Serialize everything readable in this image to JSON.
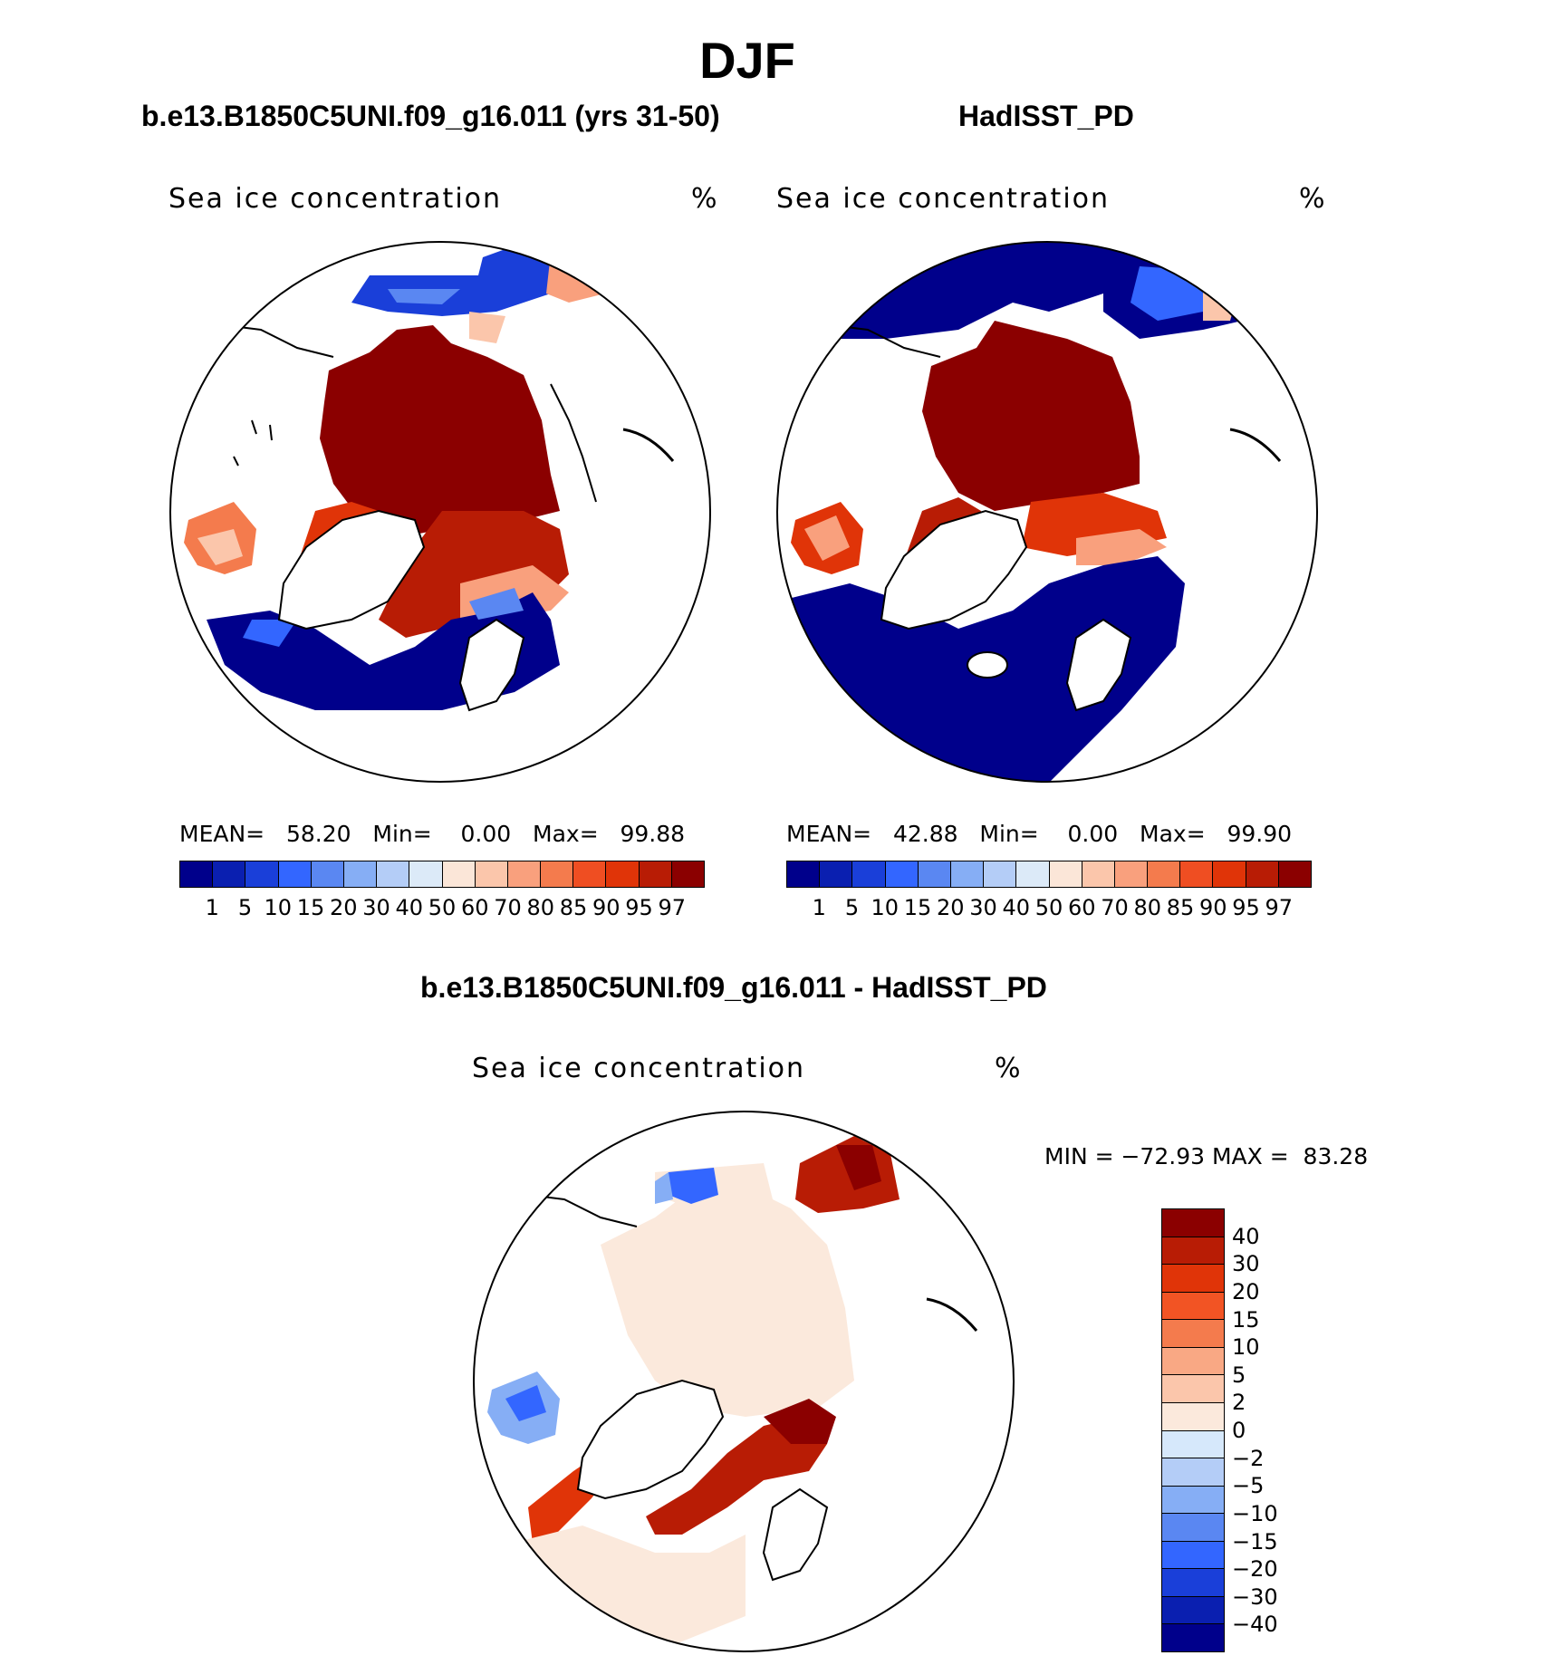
{
  "season": "DJF",
  "panels": {
    "model": {
      "case_title": "b.e13.B1850C5UNI.f09_g16.011 (yrs 31-50)",
      "variable": "Sea ice concentration",
      "units": "%",
      "stats": {
        "mean_label": "MEAN=",
        "mean": "58.20",
        "min_label": "Min=",
        "min": "0.00",
        "max_label": "Max=",
        "max": "99.88"
      }
    },
    "obs": {
      "case_title": "HadISST_PD",
      "variable": "Sea ice concentration",
      "units": "%",
      "stats": {
        "mean_label": "MEAN=",
        "mean": "42.88",
        "min_label": "Min=",
        "min": "0.00",
        "max_label": "Max=",
        "max": "99.90"
      }
    },
    "diff": {
      "case_title": "b.e13.B1850C5UNI.f09_g16.011 - HadISST_PD",
      "variable": "Sea ice concentration",
      "units": "%",
      "minmax_text": "MIN = −72.93 MAX =  83.28"
    }
  },
  "colorbar_conc": {
    "colors": [
      "#00008b",
      "#0a1fb0",
      "#1a3fd9",
      "#3366ff",
      "#5a87f2",
      "#86aef5",
      "#b4cdf7",
      "#dceaf8",
      "#fbe6d8",
      "#fbc6ab",
      "#f9a07d",
      "#f47b4d",
      "#ef4e22",
      "#e03408",
      "#b81c05",
      "#8b0000"
    ],
    "ticks": [
      "1",
      "5",
      "10",
      "15",
      "20",
      "30",
      "40",
      "50",
      "60",
      "70",
      "80",
      "85",
      "90",
      "95",
      "97"
    ]
  },
  "colorbar_diff": {
    "colors_top_to_bottom": [
      "#8b0000",
      "#b81c05",
      "#e03408",
      "#f25424",
      "#f47b4d",
      "#f9a884",
      "#fbc6ab",
      "#fbe9dc",
      "#d6e8fb",
      "#b4cdf7",
      "#86aef5",
      "#5a87f2",
      "#3366ff",
      "#1a3fd9",
      "#0a1fb0",
      "#00008b"
    ],
    "ticks_top_to_bottom": [
      "40",
      "30",
      "20",
      "15",
      "10",
      "5",
      "2",
      "0",
      "−2",
      "−5",
      "−10",
      "−15",
      "−20",
      "−30",
      "−40"
    ]
  }
}
